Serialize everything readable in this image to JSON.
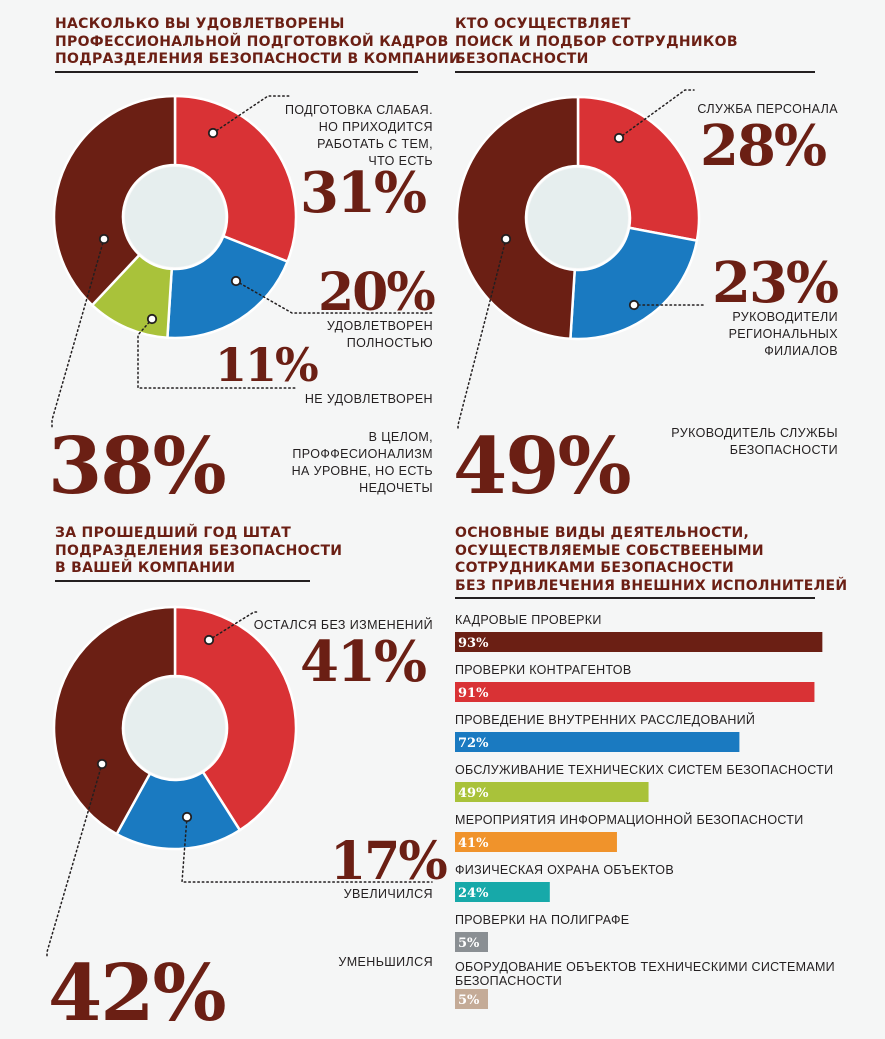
{
  "colors": {
    "maroon": "#6b1f14",
    "red": "#d93235",
    "blue": "#1a7ac1",
    "green": "#a9c23a",
    "hole": "#e6eeee",
    "orange": "#f0932b",
    "teal": "#17a9a9",
    "gray": "#8a8f93",
    "tan": "#c4ab97"
  },
  "chart_data": [
    {
      "type": "pie",
      "title": "НАСКОЛЬКО ВЫ УДОВЛЕТВОРЕНЫ ПРОФЕССИОНАЛЬНОЙ ПОДГОТОВКОЙ КАДРОВ ПОДРАЗДЕЛЕНИЯ БЕЗОПАСНОСТИ В КОМПАНИИ",
      "title_lines": [
        "НАСКОЛЬКО ВЫ УДОВЛЕТВОРЕНЫ",
        "ПРОФЕССИОНАЛЬНОЙ ПОДГОТОВКОЙ КАДРОВ",
        "ПОДРАЗДЕЛЕНИЯ БЕЗОПАСНОСТИ В КОМПАНИИ"
      ],
      "slices": [
        {
          "label": "ПОДГОТОВКА СЛАБАЯ. НО ПРИХОДИТСЯ РАБОТАТЬ С ТЕМ, ЧТО ЕСТЬ",
          "label_lines": [
            "ПОДГОТОВКА СЛАБАЯ.",
            "НО ПРИХОДИТСЯ",
            "РАБОТАТЬ С ТЕМ,",
            "ЧТО ЕСТЬ"
          ],
          "value": 31,
          "pct": "31%",
          "color": "#d93235"
        },
        {
          "label": "УДОВЛЕТВОРЕН ПОЛНОСТЬЮ",
          "label_lines": [
            "УДОВЛЕТВОРЕН",
            "ПОЛНОСТЬЮ"
          ],
          "value": 20,
          "pct": "20%",
          "color": "#1a7ac1"
        },
        {
          "label": "НЕ УДОВЛЕТВОРЕН",
          "label_lines": [
            "НЕ УДОВЛЕТВОРЕН"
          ],
          "value": 11,
          "pct": "11%",
          "color": "#a9c23a"
        },
        {
          "label": "В ЦЕЛОМ, ПРОФФЕСИОНАЛИЗМ НА УРОВНЕ, НО ЕСТЬ НЕДОЧЕТЫ",
          "label_lines": [
            "В ЦЕЛОМ,",
            "ПРОФФЕСИОНАЛИЗМ",
            "НА УРОВНЕ, НО ЕСТЬ",
            "НЕДОЧЕТЫ"
          ],
          "value": 38,
          "pct": "38%",
          "color": "#6b1f14"
        }
      ]
    },
    {
      "type": "pie",
      "title": "КТО ОСУЩЕСТВЛЯЕТ ПОИСК И ПОДБОР СОТРУДНИКОВ БЕЗОПАСНОСТИ",
      "title_lines": [
        "КТО ОСУЩЕСТВЛЯЕТ",
        "ПОИСК И ПОДБОР СОТРУДНИКОВ",
        "БЕЗОПАСНОСТИ"
      ],
      "slices": [
        {
          "label": "СЛУЖБА ПЕРСОНАЛА",
          "label_lines": [
            "СЛУЖБА ПЕРСОНАЛА"
          ],
          "value": 28,
          "pct": "28%",
          "color": "#d93235"
        },
        {
          "label": "РУКОВОДИТЕЛИ РЕГИОНАЛЬНЫХ ФИЛИАЛОВ",
          "label_lines": [
            "РУКОВОДИТЕЛИ",
            "РЕГИОНАЛЬНЫХ",
            "ФИЛИАЛОВ"
          ],
          "value": 23,
          "pct": "23%",
          "color": "#1a7ac1"
        },
        {
          "label": "РУКОВОДИТЕЛЬ СЛУЖБЫ БЕЗОПАСНОСТИ",
          "label_lines": [
            "РУКОВОДИТЕЛЬ СЛУЖБЫ",
            "БЕЗОПАСНОСТИ"
          ],
          "value": 49,
          "pct": "49%",
          "color": "#6b1f14"
        }
      ]
    },
    {
      "type": "pie",
      "title": "ЗА ПРОШЕДШИЙ ГОД ШТАТ ПОДРАЗДЕЛЕНИЯ БЕЗОПАСНОСТИ В ВАШЕЙ КОМПАНИИ",
      "title_lines": [
        "ЗА ПРОШЕДШИЙ ГОД ШТАТ",
        "ПОДРАЗДЕЛЕНИЯ БЕЗОПАСНОСТИ",
        "В ВАШЕЙ КОМПАНИИ"
      ],
      "slices": [
        {
          "label": "ОСТАЛСЯ БЕЗ ИЗМЕНЕНИЙ",
          "label_lines": [
            "ОСТАЛСЯ БЕЗ ИЗМЕНЕНИЙ"
          ],
          "value": 41,
          "pct": "41%",
          "color": "#d93235"
        },
        {
          "label": "УВЕЛИЧИЛСЯ",
          "label_lines": [
            "УВЕЛИЧИЛСЯ"
          ],
          "value": 17,
          "pct": "17%",
          "color": "#1a7ac1"
        },
        {
          "label": "УМЕНЬШИЛСЯ",
          "label_lines": [
            "УМЕНЬШИЛСЯ"
          ],
          "value": 42,
          "pct": "42%",
          "color": "#6b1f14"
        }
      ]
    },
    {
      "type": "bar",
      "orientation": "horizontal",
      "title": "ОСНОВНЫЕ ВИДЫ ДЕЯТЕЛЬНОСТИ, ОСУЩЕСТВЛЯЕМЫЕ СОБСТВЕЕНЫМИ СОТРУДНИКАМИ БЕЗОПАСНОСТИ БЕЗ ПРИВЛЕЧЕНИЯ ВНЕШНИХ ИСПОЛНИТЕЛЕЙ",
      "title_lines": [
        "ОСНОВНЫЕ ВИДЫ ДЕЯТЕЛЬНОСТИ,",
        "ОСУЩЕСТВЛЯЕМЫЕ СОБСТВЕЕНЫМИ",
        "СОТРУДНИКАМИ БЕЗОПАСНОСТИ",
        "БЕЗ ПРИВЛЕЧЕНИЯ ВНЕШНИХ ИСПОЛНИТЕЛЕЙ"
      ],
      "xlim": [
        0,
        100
      ],
      "bars": [
        {
          "label": "КАДРОВЫЕ ПРОВЕРКИ",
          "label_lines": [
            "КАДРОВЫЕ ПРОВЕРКИ"
          ],
          "value": 93,
          "pct": "93%",
          "color": "#6b1f14"
        },
        {
          "label": "ПРОВЕРКИ КОНТРАГЕНТОВ",
          "label_lines": [
            "ПРОВЕРКИ КОНТРАГЕНТОВ"
          ],
          "value": 91,
          "pct": "91%",
          "color": "#d93235"
        },
        {
          "label": "ПРОВЕДЕНИЕ ВНУТРЕННИХ РАССЛЕДОВАНИЙ",
          "label_lines": [
            "ПРОВЕДЕНИЕ ВНУТРЕННИХ РАССЛЕДОВАНИЙ"
          ],
          "value": 72,
          "pct": "72%",
          "color": "#1a7ac1"
        },
        {
          "label": "ОБСЛУЖИВАНИЕ ТЕХНИЧЕСКИХ СИСТЕМ БЕЗОПАСНОСТИ",
          "label_lines": [
            "ОБСЛУЖИВАНИЕ ТЕХНИЧЕСКИХ СИСТЕМ БЕЗОПАСНОСТИ"
          ],
          "value": 49,
          "pct": "49%",
          "color": "#a9c23a"
        },
        {
          "label": "МЕРОПРИЯТИЯ ИНФОРМАЦИОННОЙ БЕЗОПАСНОСТИ",
          "label_lines": [
            "МЕРОПРИЯТИЯ ИНФОРМАЦИОННОЙ БЕЗОПАСНОСТИ"
          ],
          "value": 41,
          "pct": "41%",
          "color": "#f0932b"
        },
        {
          "label": "ФИЗИЧЕСКАЯ ОХРАНА ОБЪЕКТОВ",
          "label_lines": [
            "ФИЗИЧЕСКАЯ ОХРАНА ОБЪЕКТОВ"
          ],
          "value": 24,
          "pct": "24%",
          "color": "#17a9a9"
        },
        {
          "label": "ПРОВЕРКИ НА ПОЛИГРАФЕ",
          "label_lines": [
            "ПРОВЕРКИ НА ПОЛИГРАФЕ"
          ],
          "value": 5,
          "pct": "5%",
          "color": "#8a8f93"
        },
        {
          "label": "ОБОРУДОВАНИЕ ОБЪЕКТОВ ТЕХНИЧЕСКИМИ СИСТЕМАМИ БЕЗОПАСНОСТИ",
          "label_lines": [
            "ОБОРУДОВАНИЕ ОБЪЕКТОВ ТЕХНИЧЕСКИМИ СИСТЕМАМИ",
            "БЕЗОПАСНОСТИ"
          ],
          "value": 5,
          "pct": "5%",
          "color": "#c4ab97"
        }
      ]
    }
  ]
}
